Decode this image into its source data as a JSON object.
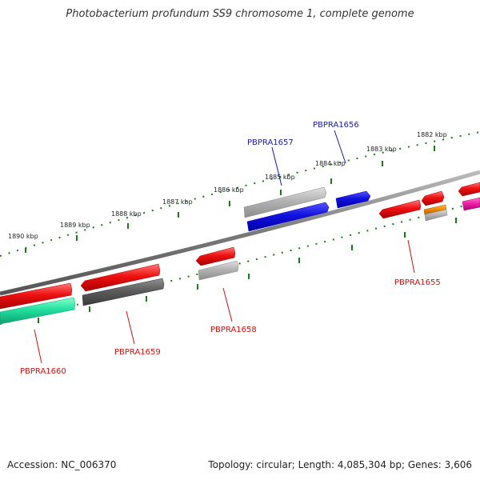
{
  "title": "Photobacterium profundum SS9 chromosome 1, complete genome",
  "footer": {
    "accession": "Accession: NC_006370",
    "summary": "Topology: circular; Length: 4,085,304 bp; Genes: 3,606"
  },
  "scale_labels": [
    "1890 kbp",
    "1889 kbp",
    "1888 kbp",
    "1887 kbp",
    "1886 kbp",
    "1885 kbp",
    "1884 kbp",
    "1883 kbp",
    "1882 kbp"
  ],
  "gene_labels": [
    "PBPRA1657",
    "PBPRA1656",
    "PBPRA1655",
    "PBPRA1658",
    "PBPRA1659",
    "PBPRA1660"
  ],
  "colors": {
    "label_blue": "#1a1aa8",
    "label_red": "#cc1111",
    "tick_green": "#1a7a1a",
    "backbone": "#8a8a8a",
    "red": "#ee1111",
    "blue": "#1111dd",
    "gray": "#b3b3b3",
    "dark_gray": "#5c5c5c",
    "teal": "#22e0a0",
    "orange": "#ee8800",
    "magenta": "#ee22aa"
  }
}
